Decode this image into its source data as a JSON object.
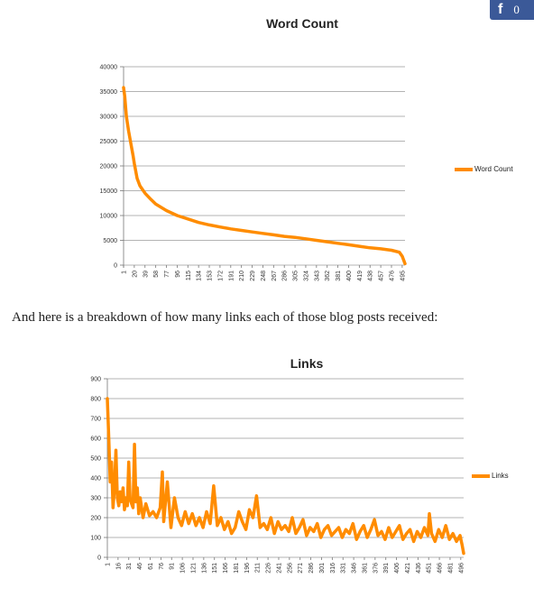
{
  "share": {
    "icon": "facebook-icon",
    "count": "0"
  },
  "paragraph": "And here is a breakdown of how many links each of those blog posts received:",
  "chart_data": [
    {
      "type": "line",
      "title": "Word Count",
      "xlabel": "",
      "ylabel": "",
      "ylim": [
        0,
        40000
      ],
      "yticks": [
        0,
        5000,
        10000,
        15000,
        20000,
        25000,
        30000,
        35000,
        40000
      ],
      "xticks": [
        1,
        20,
        39,
        58,
        77,
        96,
        115,
        134,
        153,
        172,
        191,
        210,
        229,
        248,
        267,
        286,
        305,
        324,
        343,
        362,
        381,
        400,
        419,
        438,
        457,
        476,
        495
      ],
      "xlim": [
        1,
        500
      ],
      "grid": true,
      "legend_position": "right",
      "color": "#ff8c00",
      "series": [
        {
          "name": "Word Count",
          "x": [
            1,
            3,
            6,
            10,
            14,
            18,
            20,
            25,
            30,
            39,
            50,
            58,
            77,
            96,
            115,
            134,
            153,
            172,
            191,
            210,
            229,
            248,
            267,
            286,
            305,
            324,
            343,
            362,
            381,
            400,
            419,
            438,
            457,
            476,
            490,
            495,
            500
          ],
          "values": [
            35800,
            34000,
            30000,
            27000,
            24500,
            22000,
            20500,
            17500,
            16000,
            14500,
            13200,
            12300,
            11000,
            10000,
            9300,
            8600,
            8100,
            7700,
            7300,
            7000,
            6700,
            6400,
            6100,
            5800,
            5600,
            5300,
            5000,
            4700,
            4400,
            4100,
            3800,
            3500,
            3300,
            3000,
            2600,
            1800,
            300
          ]
        }
      ]
    },
    {
      "type": "line",
      "title": "Links",
      "xlabel": "",
      "ylabel": "",
      "ylim": [
        0,
        900
      ],
      "yticks": [
        0,
        100,
        200,
        300,
        400,
        500,
        600,
        700,
        800,
        900
      ],
      "xticks": [
        1,
        16,
        31,
        46,
        61,
        76,
        91,
        106,
        121,
        136,
        151,
        166,
        181,
        196,
        211,
        226,
        241,
        256,
        271,
        286,
        301,
        316,
        331,
        346,
        361,
        376,
        391,
        406,
        421,
        436,
        451,
        466,
        481,
        496
      ],
      "xlim": [
        1,
        500
      ],
      "grid": true,
      "legend_position": "right",
      "color": "#ff8c00",
      "series": [
        {
          "name": "Links",
          "x": [
            1,
            3,
            5,
            7,
            9,
            11,
            13,
            15,
            17,
            19,
            21,
            23,
            25,
            27,
            29,
            31,
            33,
            35,
            37,
            39,
            41,
            43,
            45,
            47,
            49,
            51,
            55,
            60,
            65,
            70,
            75,
            78,
            80,
            85,
            90,
            95,
            100,
            105,
            110,
            115,
            120,
            125,
            130,
            135,
            140,
            145,
            150,
            155,
            160,
            165,
            170,
            175,
            180,
            185,
            190,
            195,
            200,
            205,
            210,
            215,
            220,
            225,
            230,
            235,
            240,
            245,
            250,
            255,
            260,
            265,
            270,
            275,
            280,
            285,
            290,
            295,
            300,
            305,
            310,
            315,
            320,
            325,
            330,
            335,
            340,
            345,
            350,
            355,
            360,
            365,
            370,
            375,
            380,
            385,
            390,
            395,
            400,
            405,
            410,
            415,
            420,
            425,
            430,
            435,
            440,
            445,
            450,
            452,
            455,
            460,
            465,
            470,
            475,
            480,
            485,
            490,
            495,
            498,
            500
          ],
          "values": [
            800,
            600,
            380,
            480,
            250,
            350,
            540,
            300,
            260,
            330,
            280,
            350,
            240,
            300,
            260,
            480,
            290,
            270,
            250,
            570,
            280,
            350,
            220,
            300,
            250,
            200,
            270,
            210,
            230,
            200,
            250,
            430,
            180,
            380,
            150,
            300,
            200,
            160,
            230,
            170,
            220,
            160,
            200,
            150,
            230,
            170,
            360,
            160,
            200,
            140,
            180,
            120,
            150,
            230,
            180,
            140,
            240,
            200,
            310,
            150,
            170,
            140,
            200,
            120,
            180,
            140,
            160,
            130,
            200,
            120,
            150,
            190,
            110,
            150,
            130,
            170,
            100,
            140,
            160,
            110,
            130,
            150,
            100,
            140,
            120,
            170,
            90,
            130,
            160,
            100,
            140,
            190,
            110,
            130,
            90,
            150,
            100,
            130,
            160,
            90,
            120,
            140,
            80,
            130,
            100,
            150,
            110,
            220,
            120,
            80,
            140,
            100,
            160,
            90,
            120,
            80,
            110,
            60,
            20
          ]
        }
      ]
    }
  ]
}
